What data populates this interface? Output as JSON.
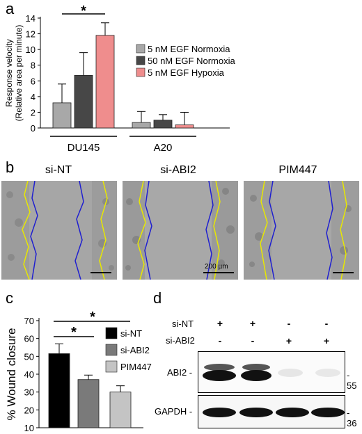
{
  "panels": {
    "a": "a",
    "b": "b",
    "c": "c",
    "d": "d"
  },
  "chart_data": [
    {
      "type": "bar",
      "ylabel": "Response velocity (Relative area per minute)",
      "ylabel_lines": [
        "Response velocity",
        "(Relative area per minute)"
      ],
      "ylim": [
        0,
        14
      ],
      "yticks": [
        0,
        2,
        4,
        6,
        8,
        10,
        12,
        14
      ],
      "categories": [
        "DU145",
        "A20"
      ],
      "series": [
        {
          "name": "5 nM EGF Normoxia",
          "color": "#a8a8a8",
          "values": [
            3.2,
            0.7
          ],
          "errors": [
            2.4,
            1.4
          ]
        },
        {
          "name": "50 nM EGF Normoxia",
          "color": "#474747",
          "values": [
            6.7,
            1.0
          ],
          "errors": [
            2.9,
            0.7
          ]
        },
        {
          "name": "5 nM EGF Hypoxia",
          "color": "#ef8d8d",
          "values": [
            11.8,
            0.4
          ],
          "errors": [
            1.6,
            1.6
          ]
        }
      ],
      "significance": "*",
      "legend": "right"
    },
    {
      "type": "bar",
      "ylabel": "% Wound closure",
      "ylim": [
        10,
        70
      ],
      "yticks": [
        10,
        20,
        30,
        40,
        50,
        60,
        70
      ],
      "categories": [
        "si-NT",
        "si-ABI2",
        "PIM447"
      ],
      "values": [
        51.5,
        37,
        30
      ],
      "errors": [
        5.5,
        2.5,
        3.5
      ],
      "colors": [
        "#000000",
        "#7a7a7a",
        "#c4c4c4"
      ],
      "significance": [
        "*",
        "*"
      ],
      "legend": "right"
    }
  ],
  "micrographs": {
    "titles": [
      "si-NT",
      "si-ABI2",
      "PIM447"
    ],
    "scale_bar_label": "200 µm"
  },
  "blot": {
    "row_labels": [
      "si-NT",
      "si-ABI2"
    ],
    "lanes": [
      [
        "+",
        "-"
      ],
      [
        "+",
        "-"
      ],
      [
        "-",
        "+"
      ],
      [
        "-",
        "+"
      ]
    ],
    "protein_labels": [
      "ABI2 -",
      "GAPDH -"
    ],
    "marker_labels": [
      "- 55",
      "- 36"
    ]
  }
}
